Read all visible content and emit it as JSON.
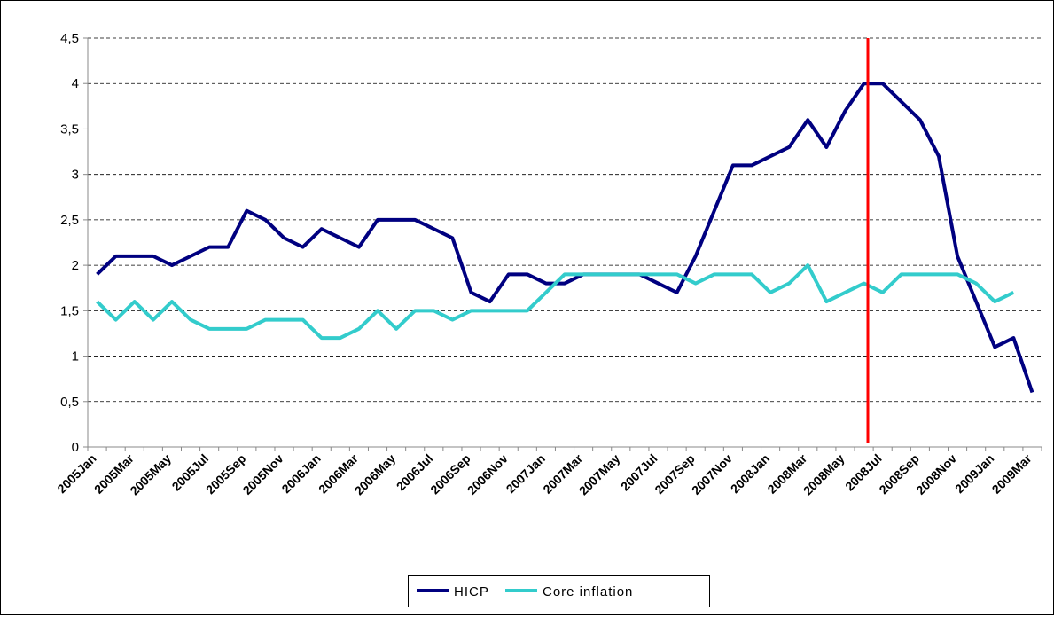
{
  "chart_data": {
    "type": "line",
    "categories": [
      "2005Jan",
      null,
      "2005Mar",
      null,
      "2005May",
      null,
      "2005Jul",
      null,
      "2005Sep",
      null,
      "2005Nov",
      null,
      "2006Jan",
      null,
      "2006Mar",
      null,
      "2006May",
      null,
      "2006Jul",
      null,
      "2006Sep",
      null,
      "2006Nov",
      null,
      "2007Jan",
      null,
      "2007Mar",
      null,
      "2007May",
      null,
      "2007Jul",
      null,
      "2007Sep",
      null,
      "2007Nov",
      null,
      "2008Jan",
      null,
      "2008Mar",
      null,
      "2008May",
      null,
      "2008Jul",
      null,
      "2008Sep",
      null,
      "2008Nov",
      null,
      "2009Jan",
      null,
      "2009Mar"
    ],
    "series": [
      {
        "name": "HICP",
        "color": "#000080",
        "values": [
          1.9,
          2.1,
          2.1,
          2.1,
          2.0,
          2.1,
          2.2,
          2.2,
          2.6,
          2.5,
          2.3,
          2.2,
          2.4,
          2.3,
          2.2,
          2.5,
          2.5,
          2.5,
          2.4,
          2.3,
          1.7,
          1.6,
          1.9,
          1.9,
          1.8,
          1.8,
          1.9,
          1.9,
          1.9,
          1.9,
          1.8,
          1.7,
          2.1,
          2.6,
          3.1,
          3.1,
          3.2,
          3.3,
          3.6,
          3.3,
          3.7,
          4.0,
          4.0,
          3.8,
          3.6,
          3.2,
          2.1,
          1.6,
          1.1,
          1.2,
          0.6
        ]
      },
      {
        "name": "Core inflation",
        "color": "#33cccc",
        "values": [
          1.6,
          1.4,
          1.6,
          1.4,
          1.6,
          1.4,
          1.3,
          1.3,
          1.3,
          1.4,
          1.4,
          1.4,
          1.2,
          1.2,
          1.3,
          1.5,
          1.3,
          1.5,
          1.5,
          1.4,
          1.5,
          1.5,
          1.5,
          1.5,
          1.7,
          1.9,
          1.9,
          1.9,
          1.9,
          1.9,
          1.9,
          1.9,
          1.8,
          1.9,
          1.9,
          1.9,
          1.7,
          1.8,
          2.0,
          1.6,
          1.7,
          1.8,
          1.7,
          1.9,
          1.9,
          1.9,
          1.9,
          1.8,
          1.6,
          1.7,
          null
        ]
      }
    ],
    "ylim": [
      0,
      4.5
    ],
    "yticks": [
      0,
      {
        "value": 0.5,
        "label": "0,5"
      },
      1,
      {
        "value": 1.5,
        "label": "1,5"
      },
      2,
      {
        "value": 2.5,
        "label": "2,5"
      },
      3,
      {
        "value": 3.5,
        "label": "3,5"
      },
      4,
      {
        "value": 4.5,
        "label": "4,5"
      }
    ],
    "grid": true,
    "legend": "bottom"
  }
}
